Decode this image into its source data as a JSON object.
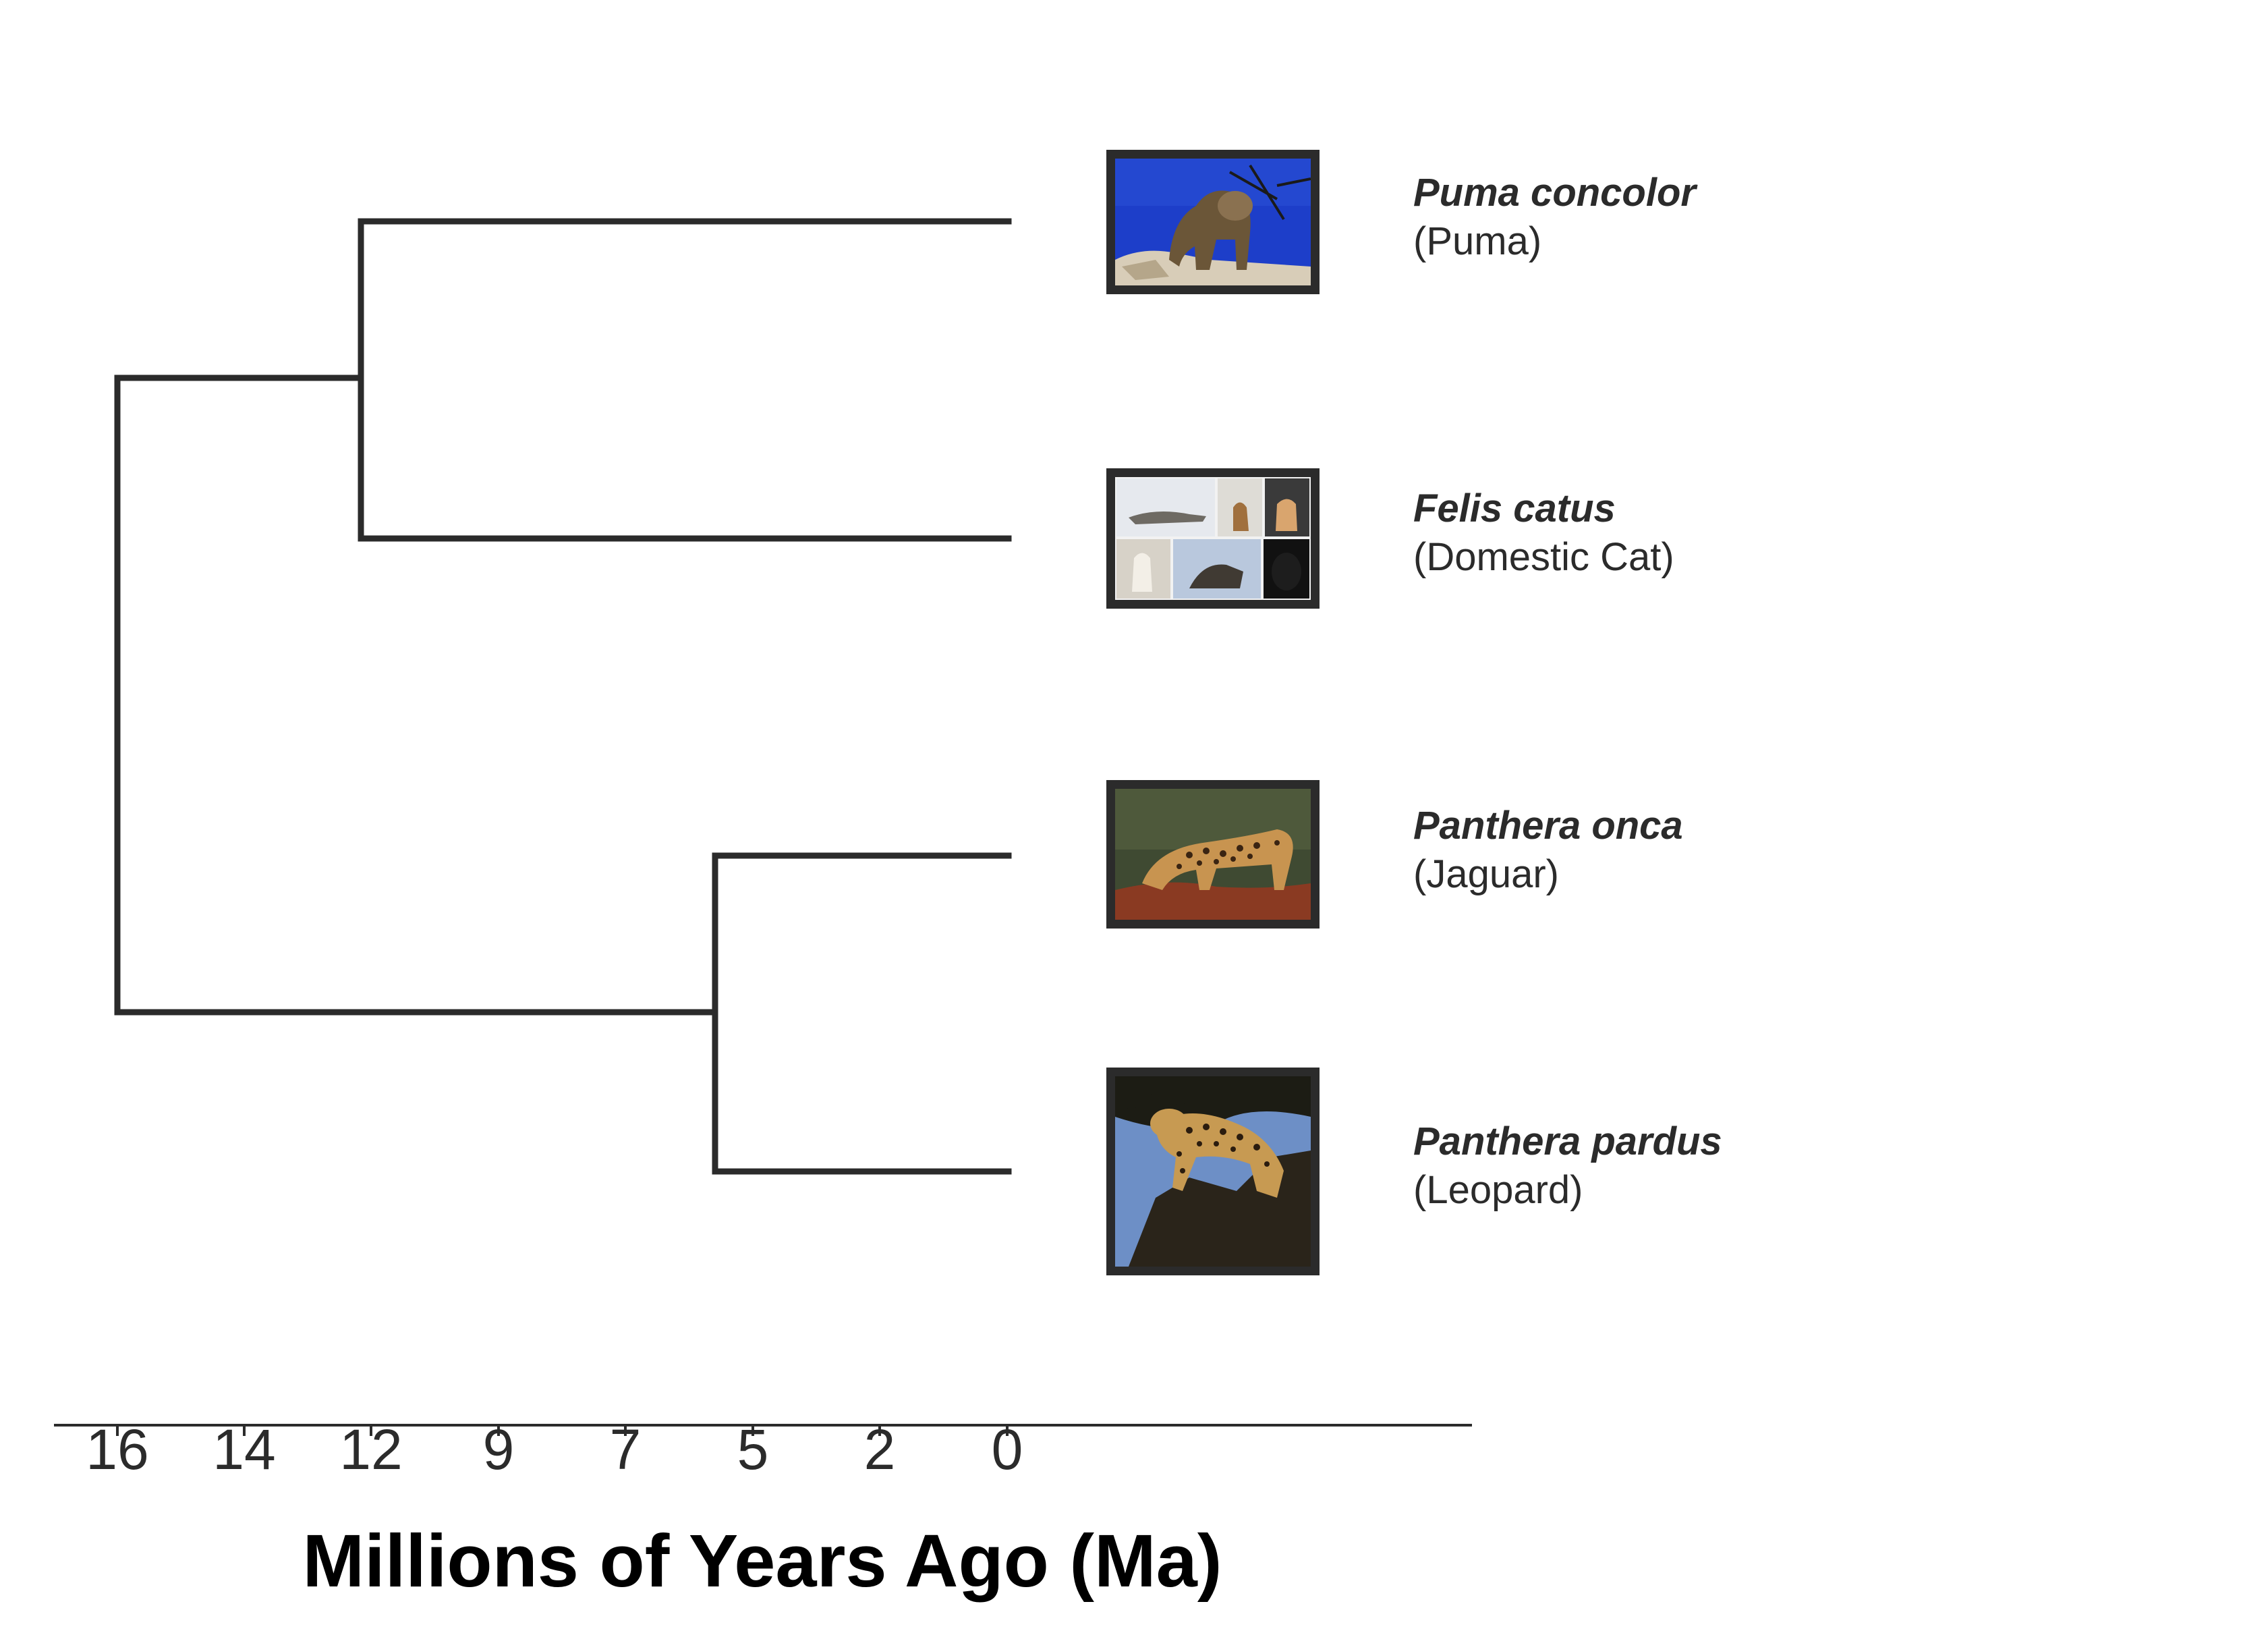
{
  "axis": {
    "title": "Millions of Years Ago (Ma)",
    "ticks": [
      "16",
      "14",
      "12",
      "9",
      "7",
      "5",
      "2",
      "0"
    ]
  },
  "taxa": [
    {
      "scientific": "Puma concolor",
      "common": "(Puma)",
      "image": "puma-photo"
    },
    {
      "scientific": "Felis catus",
      "common": "(Domestic Cat)",
      "image": "domestic-cat-collage"
    },
    {
      "scientific": "Panthera onca",
      "common": "(Jaguar)",
      "image": "jaguar-photo"
    },
    {
      "scientific": "Panthera pardus",
      "common": "(Leopard)",
      "image": "leopard-photo"
    }
  ],
  "colors": {
    "branch": "#2b2b2b",
    "frame": "#2b2b2b"
  }
}
